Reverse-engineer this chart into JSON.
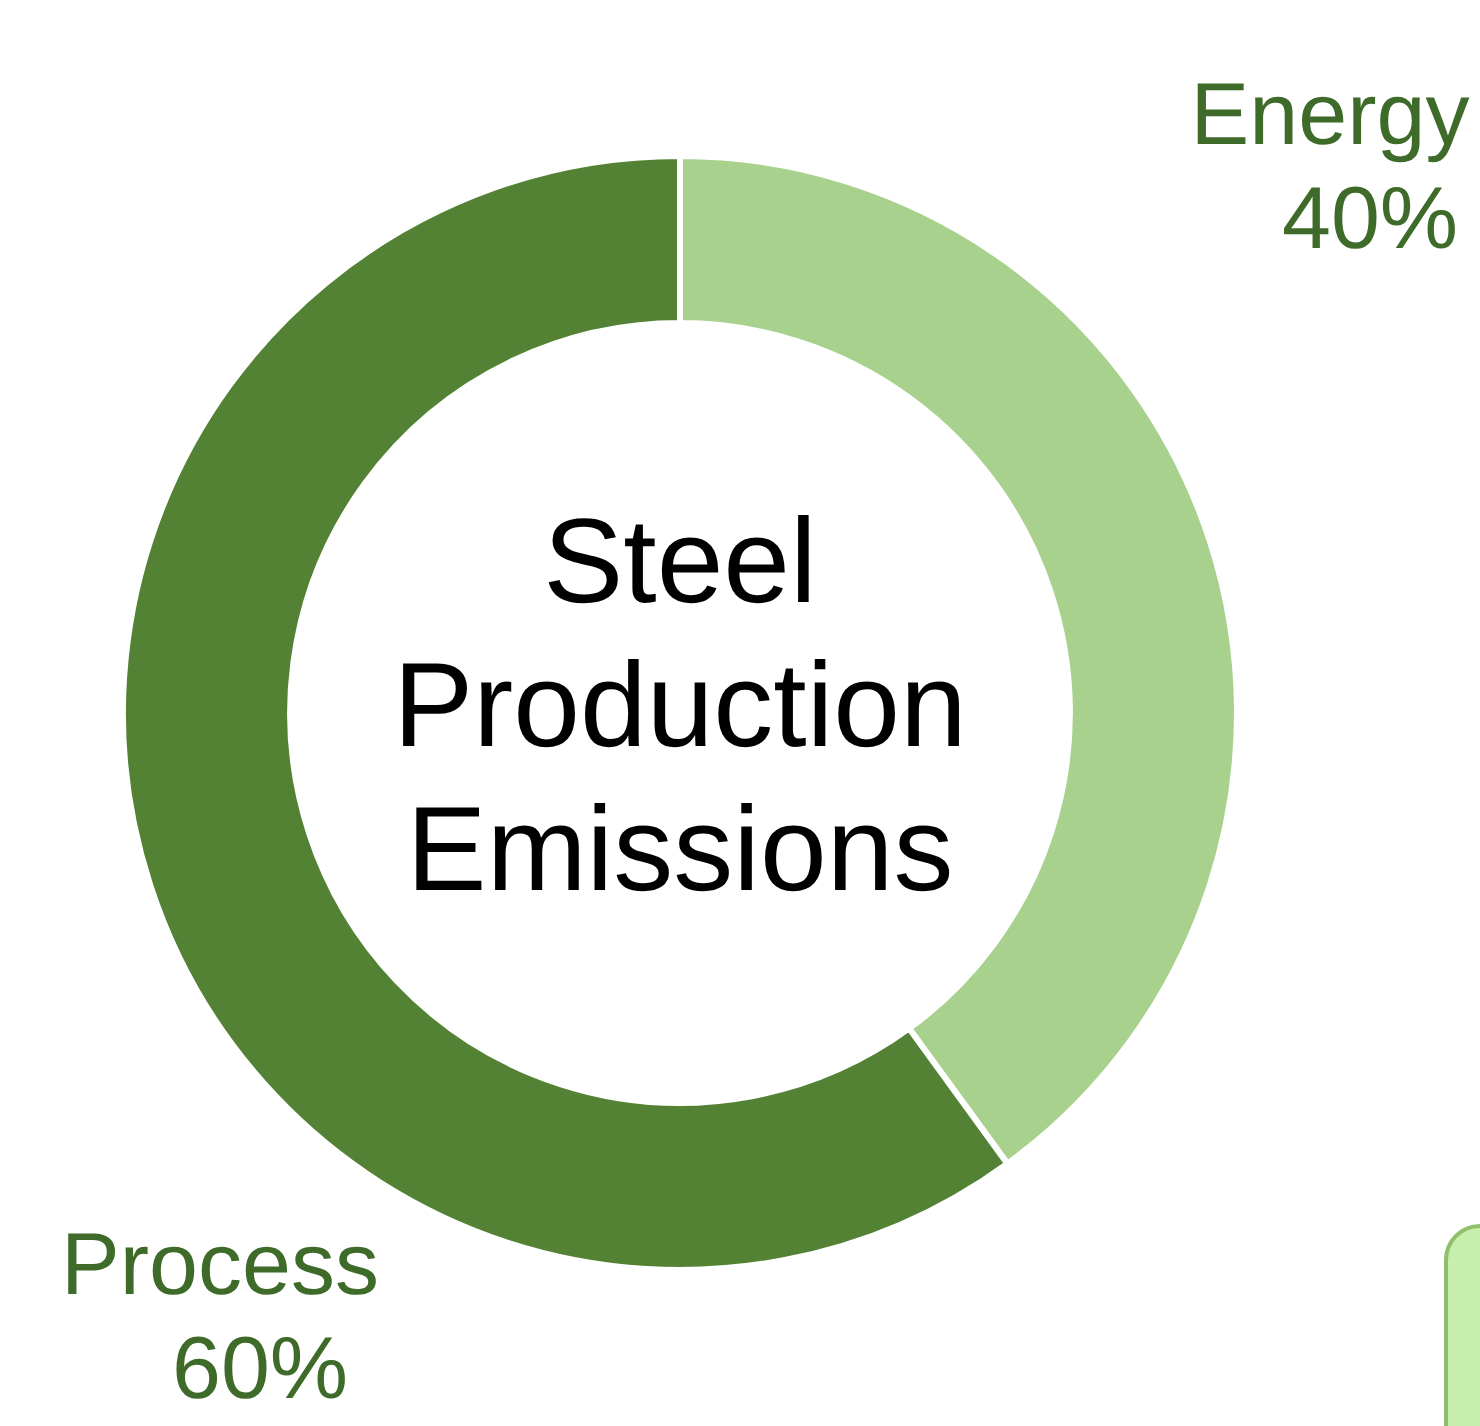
{
  "chart_data": {
    "type": "donut",
    "title": "Steel Production Emissions",
    "categories": [
      "Energy",
      "Process"
    ],
    "values": [
      40,
      60
    ],
    "colors": [
      "#a9d18e",
      "#548235"
    ],
    "value_labels": [
      "40%",
      "60%"
    ],
    "legend": false
  }
}
